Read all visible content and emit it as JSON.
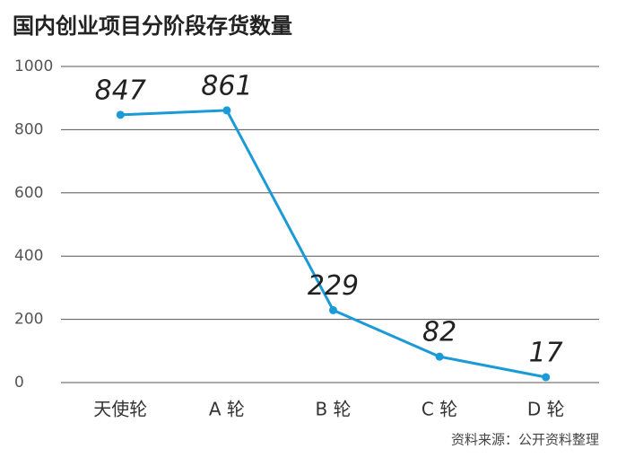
{
  "chart_data": {
    "type": "line",
    "title": "国内创业项目分阶段存货数量",
    "categories": [
      "天使轮",
      "A 轮",
      "B 轮",
      "C 轮",
      "D 轮"
    ],
    "values": [
      847,
      861,
      229,
      82,
      17
    ],
    "color": "#1a9ad6",
    "ylim": [
      0,
      1000
    ],
    "yticks": [
      0,
      200,
      400,
      600,
      800,
      1000
    ],
    "grid": true,
    "source": "资料来源：公开资料整理"
  }
}
